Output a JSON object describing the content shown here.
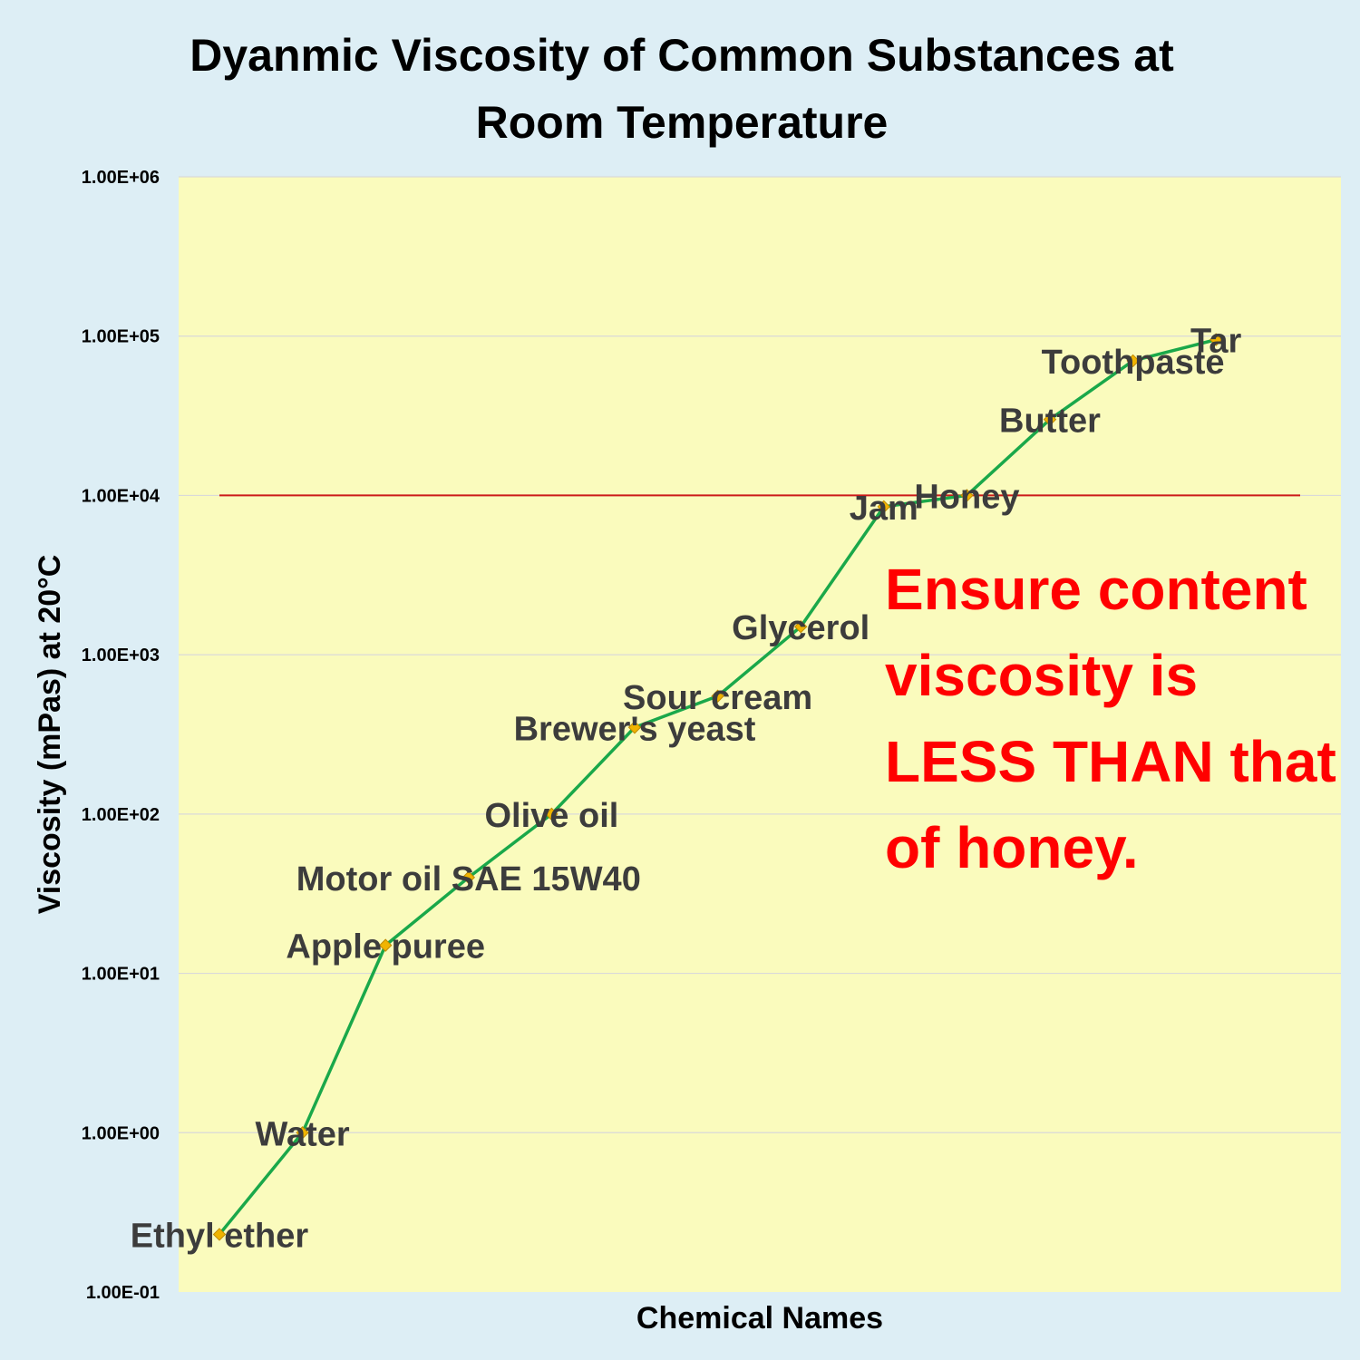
{
  "chart_data": {
    "type": "line",
    "title_lines": [
      "Dyanmic Viscosity of Common Substances at",
      "Room Temperature"
    ],
    "xlabel": "Chemical Names",
    "ylabel": "Viscosity (mPas) at 20°C",
    "y_scale": "log",
    "ylim": [
      0.1,
      1000000
    ],
    "y_ticks": [
      "1.00E-01",
      "1.00E+00",
      "1.00E+01",
      "1.00E+02",
      "1.00E+03",
      "1.00E+04",
      "1.00E+05",
      "1.00E+06"
    ],
    "grid": true,
    "legend": "none",
    "categories": [
      "Ethyl ether",
      "Water",
      "Apple puree",
      "Motor oil SAE 15W40",
      "Olive oil",
      "Brewer's yeast",
      "Sour cream",
      "Glycerol",
      "Jam",
      "Honey",
      "Butter",
      "Toothpaste",
      "Tar"
    ],
    "series": [
      {
        "values": [
          0.23,
          1,
          15,
          40,
          100,
          350,
          550,
          1500,
          8500,
          10000,
          30000,
          70000,
          95000
        ]
      }
    ],
    "reference_line": {
      "value": 10000
    },
    "annotation": {
      "lines": [
        "Ensure content",
        "viscosity is",
        "LESS THAN that",
        "of honey."
      ]
    },
    "colors": {
      "background": "#ddeef5",
      "plot_area": "#fafbbd",
      "line": "#1aa84a",
      "marker": "#f0b400",
      "reference_line": "#cc1a1a",
      "annotation": "#ff0000",
      "gridline": "#d9d9d9"
    }
  }
}
